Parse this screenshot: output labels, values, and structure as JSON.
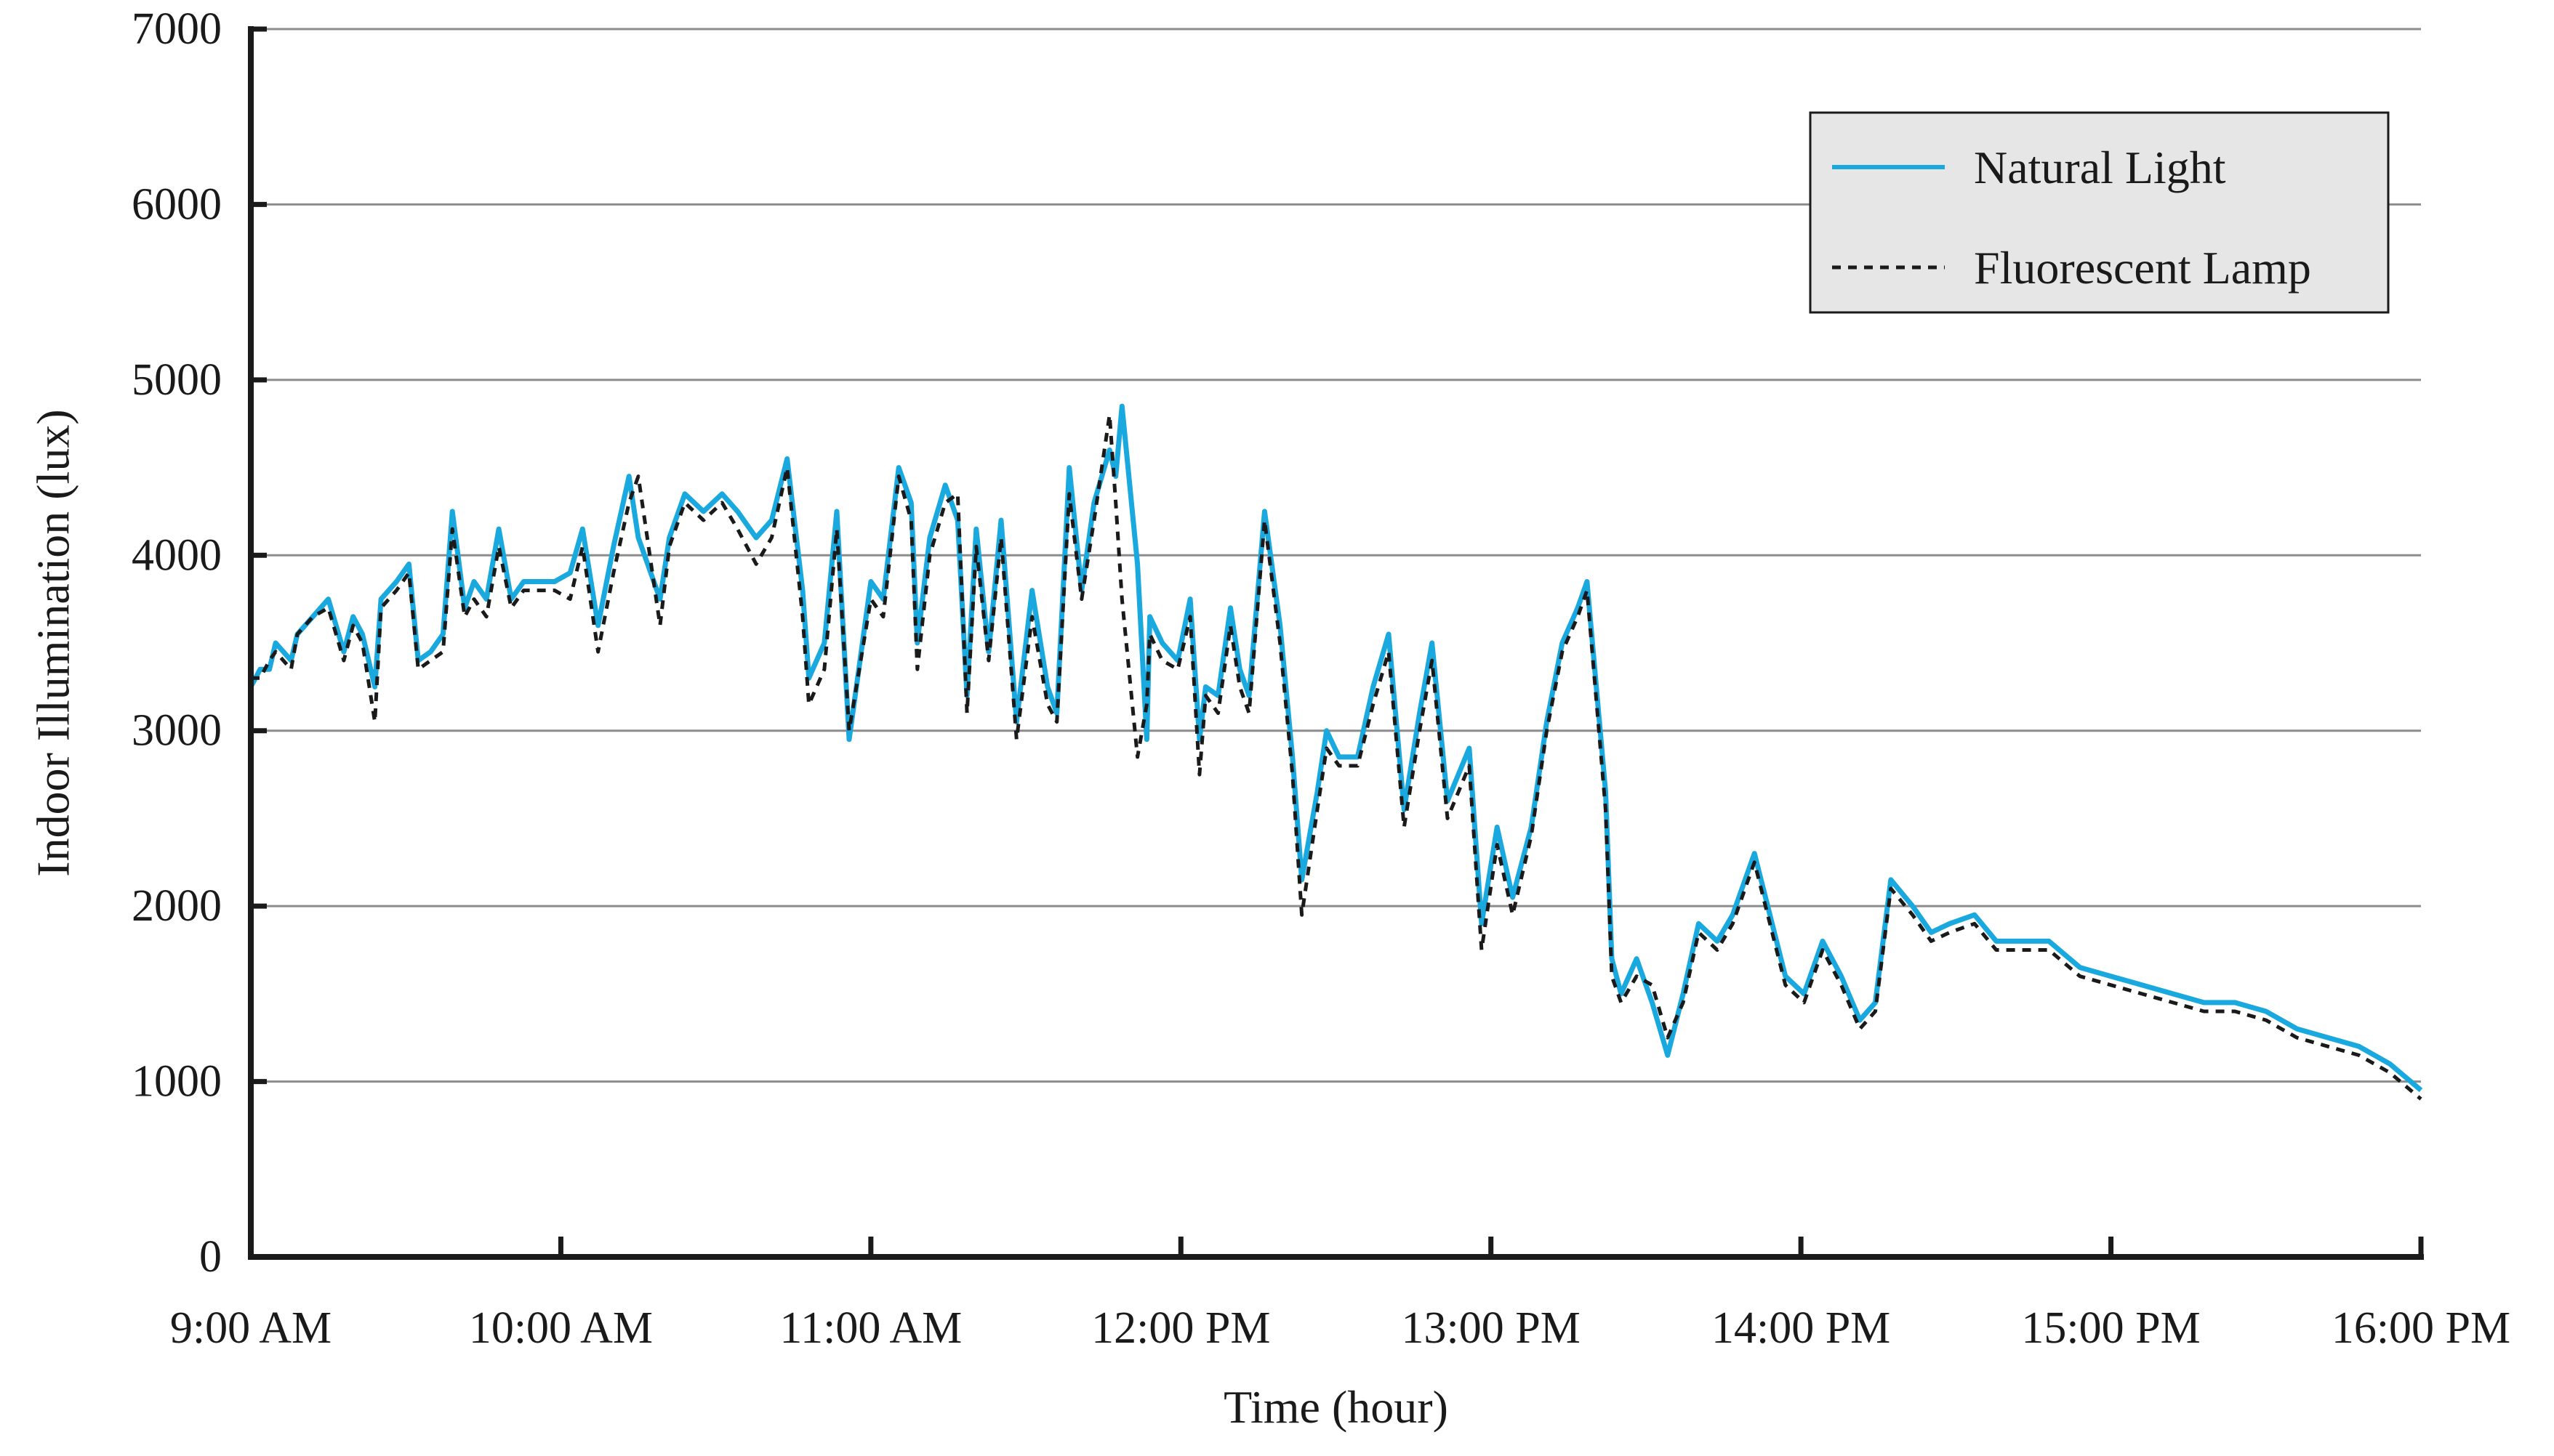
{
  "chart_data": {
    "type": "line",
    "title": "",
    "xlabel": "Time (hour)",
    "ylabel": "Indoor Illumination (lux)",
    "xlim": [
      9,
      16
    ],
    "ylim": [
      0,
      7000
    ],
    "x_ticks": [
      {
        "value": 9,
        "label": "9:00 AM"
      },
      {
        "value": 10,
        "label": "10:00 AM"
      },
      {
        "value": 11,
        "label": "11:00 AM"
      },
      {
        "value": 12,
        "label": "12:00 PM"
      },
      {
        "value": 13,
        "label": "13:00 PM"
      },
      {
        "value": 14,
        "label": "14:00 PM"
      },
      {
        "value": 15,
        "label": "15:00 PM"
      },
      {
        "value": 16,
        "label": "16:00 PM"
      }
    ],
    "y_ticks": [
      {
        "value": 0,
        "label": "0"
      },
      {
        "value": 1000,
        "label": "1000"
      },
      {
        "value": 2000,
        "label": "2000"
      },
      {
        "value": 3000,
        "label": "3000"
      },
      {
        "value": 4000,
        "label": "4000"
      },
      {
        "value": 5000,
        "label": "5000"
      },
      {
        "value": 6000,
        "label": "6000"
      },
      {
        "value": 7000,
        "label": "7000"
      }
    ],
    "grid": true,
    "legend": "top-right",
    "series": [
      {
        "name": "Natural Light",
        "color": "#1aa9de",
        "dash": "solid",
        "points": [
          [
            9.0,
            3250
          ],
          [
            9.03,
            3350
          ],
          [
            9.06,
            3350
          ],
          [
            9.08,
            3500
          ],
          [
            9.13,
            3400
          ],
          [
            9.15,
            3550
          ],
          [
            9.2,
            3650
          ],
          [
            9.25,
            3750
          ],
          [
            9.3,
            3450
          ],
          [
            9.33,
            3650
          ],
          [
            9.36,
            3550
          ],
          [
            9.4,
            3250
          ],
          [
            9.42,
            3750
          ],
          [
            9.47,
            3850
          ],
          [
            9.51,
            3950
          ],
          [
            9.54,
            3400
          ],
          [
            9.58,
            3450
          ],
          [
            9.62,
            3550
          ],
          [
            9.65,
            4250
          ],
          [
            9.69,
            3700
          ],
          [
            9.72,
            3850
          ],
          [
            9.76,
            3750
          ],
          [
            9.8,
            4150
          ],
          [
            9.84,
            3750
          ],
          [
            9.88,
            3850
          ],
          [
            9.93,
            3850
          ],
          [
            9.98,
            3850
          ],
          [
            10.03,
            3900
          ],
          [
            10.07,
            4150
          ],
          [
            10.12,
            3600
          ],
          [
            10.17,
            4050
          ],
          [
            10.22,
            4450
          ],
          [
            10.25,
            4100
          ],
          [
            10.32,
            3750
          ],
          [
            10.35,
            4100
          ],
          [
            10.4,
            4350
          ],
          [
            10.46,
            4250
          ],
          [
            10.52,
            4350
          ],
          [
            10.57,
            4250
          ],
          [
            10.63,
            4100
          ],
          [
            10.68,
            4200
          ],
          [
            10.73,
            4550
          ],
          [
            10.78,
            3800
          ],
          [
            10.8,
            3300
          ],
          [
            10.85,
            3500
          ],
          [
            10.89,
            4250
          ],
          [
            10.93,
            2950
          ],
          [
            11.0,
            3850
          ],
          [
            11.04,
            3750
          ],
          [
            11.09,
            4500
          ],
          [
            11.13,
            4300
          ],
          [
            11.15,
            3500
          ],
          [
            11.19,
            4100
          ],
          [
            11.24,
            4400
          ],
          [
            11.28,
            4200
          ],
          [
            11.31,
            3200
          ],
          [
            11.34,
            4150
          ],
          [
            11.38,
            3450
          ],
          [
            11.42,
            4200
          ],
          [
            11.47,
            3050
          ],
          [
            11.52,
            3800
          ],
          [
            11.57,
            3250
          ],
          [
            11.6,
            3100
          ],
          [
            11.64,
            4500
          ],
          [
            11.68,
            3800
          ],
          [
            11.72,
            4300
          ],
          [
            11.77,
            4600
          ],
          [
            11.79,
            4450
          ],
          [
            11.81,
            4850
          ],
          [
            11.86,
            3950
          ],
          [
            11.89,
            2950
          ],
          [
            11.9,
            3650
          ],
          [
            11.94,
            3500
          ],
          [
            11.99,
            3400
          ],
          [
            12.03,
            3750
          ],
          [
            12.06,
            2950
          ],
          [
            12.08,
            3250
          ],
          [
            12.12,
            3200
          ],
          [
            12.16,
            3700
          ],
          [
            12.19,
            3350
          ],
          [
            12.22,
            3200
          ],
          [
            12.27,
            4250
          ],
          [
            12.32,
            3600
          ],
          [
            12.36,
            2850
          ],
          [
            12.39,
            2150
          ],
          [
            12.44,
            2650
          ],
          [
            12.47,
            3000
          ],
          [
            12.51,
            2850
          ],
          [
            12.57,
            2850
          ],
          [
            12.62,
            3250
          ],
          [
            12.67,
            3550
          ],
          [
            12.72,
            2550
          ],
          [
            12.77,
            3100
          ],
          [
            12.81,
            3500
          ],
          [
            12.86,
            2600
          ],
          [
            12.93,
            2900
          ],
          [
            12.97,
            1900
          ],
          [
            13.02,
            2450
          ],
          [
            13.07,
            2050
          ],
          [
            13.13,
            2450
          ],
          [
            13.18,
            3050
          ],
          [
            13.23,
            3500
          ],
          [
            13.28,
            3700
          ],
          [
            13.31,
            3850
          ],
          [
            13.37,
            2650
          ],
          [
            13.39,
            1700
          ],
          [
            13.42,
            1500
          ],
          [
            13.47,
            1700
          ],
          [
            13.52,
            1450
          ],
          [
            13.57,
            1150
          ],
          [
            13.62,
            1500
          ],
          [
            13.67,
            1900
          ],
          [
            13.73,
            1800
          ],
          [
            13.78,
            1950
          ],
          [
            13.85,
            2300
          ],
          [
            13.9,
            1950
          ],
          [
            13.95,
            1600
          ],
          [
            14.01,
            1500
          ],
          [
            14.07,
            1800
          ],
          [
            14.13,
            1600
          ],
          [
            14.19,
            1350
          ],
          [
            14.24,
            1450
          ],
          [
            14.29,
            2150
          ],
          [
            14.36,
            2000
          ],
          [
            14.42,
            1850
          ],
          [
            14.48,
            1900
          ],
          [
            14.56,
            1950
          ],
          [
            14.63,
            1800
          ],
          [
            14.72,
            1800
          ],
          [
            14.8,
            1800
          ],
          [
            14.9,
            1650
          ],
          [
            15.0,
            1600
          ],
          [
            15.1,
            1550
          ],
          [
            15.2,
            1500
          ],
          [
            15.3,
            1450
          ],
          [
            15.4,
            1450
          ],
          [
            15.5,
            1400
          ],
          [
            15.6,
            1300
          ],
          [
            15.7,
            1250
          ],
          [
            15.8,
            1200
          ],
          [
            15.9,
            1100
          ],
          [
            16.0,
            950
          ]
        ]
      },
      {
        "name": "Fluorescent Lamp",
        "color": "#1a1a1a",
        "dash": "dashed",
        "points": [
          [
            9.0,
            3300
          ],
          [
            9.03,
            3300
          ],
          [
            9.06,
            3400
          ],
          [
            9.08,
            3450
          ],
          [
            9.13,
            3350
          ],
          [
            9.15,
            3550
          ],
          [
            9.2,
            3650
          ],
          [
            9.25,
            3700
          ],
          [
            9.3,
            3400
          ],
          [
            9.33,
            3600
          ],
          [
            9.36,
            3500
          ],
          [
            9.4,
            3050
          ],
          [
            9.42,
            3700
          ],
          [
            9.47,
            3800
          ],
          [
            9.51,
            3900
          ],
          [
            9.54,
            3350
          ],
          [
            9.58,
            3400
          ],
          [
            9.62,
            3450
          ],
          [
            9.65,
            4150
          ],
          [
            9.69,
            3650
          ],
          [
            9.72,
            3750
          ],
          [
            9.76,
            3650
          ],
          [
            9.8,
            4050
          ],
          [
            9.84,
            3700
          ],
          [
            9.88,
            3800
          ],
          [
            9.93,
            3800
          ],
          [
            9.98,
            3800
          ],
          [
            10.03,
            3750
          ],
          [
            10.07,
            4050
          ],
          [
            10.12,
            3450
          ],
          [
            10.17,
            3900
          ],
          [
            10.22,
            4300
          ],
          [
            10.25,
            4450
          ],
          [
            10.32,
            3600
          ],
          [
            10.35,
            4050
          ],
          [
            10.4,
            4300
          ],
          [
            10.46,
            4200
          ],
          [
            10.52,
            4300
          ],
          [
            10.57,
            4150
          ],
          [
            10.63,
            3950
          ],
          [
            10.68,
            4100
          ],
          [
            10.73,
            4500
          ],
          [
            10.78,
            3650
          ],
          [
            10.8,
            3150
          ],
          [
            10.85,
            3350
          ],
          [
            10.89,
            4150
          ],
          [
            10.93,
            3000
          ],
          [
            11.0,
            3750
          ],
          [
            11.04,
            3650
          ],
          [
            11.09,
            4450
          ],
          [
            11.13,
            4200
          ],
          [
            11.15,
            3350
          ],
          [
            11.19,
            4000
          ],
          [
            11.24,
            4300
          ],
          [
            11.28,
            4350
          ],
          [
            11.31,
            3100
          ],
          [
            11.34,
            4050
          ],
          [
            11.38,
            3400
          ],
          [
            11.42,
            4100
          ],
          [
            11.47,
            2950
          ],
          [
            11.52,
            3650
          ],
          [
            11.57,
            3150
          ],
          [
            11.6,
            3050
          ],
          [
            11.64,
            4350
          ],
          [
            11.68,
            3750
          ],
          [
            11.72,
            4200
          ],
          [
            11.77,
            4800
          ],
          [
            11.79,
            4300
          ],
          [
            11.81,
            3750
          ],
          [
            11.86,
            2850
          ],
          [
            11.89,
            3150
          ],
          [
            11.9,
            3550
          ],
          [
            11.94,
            3400
          ],
          [
            11.99,
            3350
          ],
          [
            12.03,
            3650
          ],
          [
            12.06,
            2750
          ],
          [
            12.08,
            3200
          ],
          [
            12.12,
            3100
          ],
          [
            12.16,
            3600
          ],
          [
            12.19,
            3250
          ],
          [
            12.22,
            3100
          ],
          [
            12.27,
            4200
          ],
          [
            12.32,
            3500
          ],
          [
            12.36,
            2750
          ],
          [
            12.39,
            1950
          ],
          [
            12.44,
            2550
          ],
          [
            12.47,
            2900
          ],
          [
            12.51,
            2800
          ],
          [
            12.57,
            2800
          ],
          [
            12.62,
            3150
          ],
          [
            12.67,
            3450
          ],
          [
            12.72,
            2450
          ],
          [
            12.77,
            3000
          ],
          [
            12.81,
            3400
          ],
          [
            12.86,
            2500
          ],
          [
            12.93,
            2800
          ],
          [
            12.97,
            1750
          ],
          [
            13.02,
            2350
          ],
          [
            13.07,
            1950
          ],
          [
            13.13,
            2400
          ],
          [
            13.18,
            3000
          ],
          [
            13.23,
            3450
          ],
          [
            13.28,
            3650
          ],
          [
            13.31,
            3800
          ],
          [
            13.37,
            2550
          ],
          [
            13.39,
            1600
          ],
          [
            13.42,
            1450
          ],
          [
            13.47,
            1600
          ],
          [
            13.52,
            1550
          ],
          [
            13.57,
            1250
          ],
          [
            13.62,
            1450
          ],
          [
            13.67,
            1850
          ],
          [
            13.73,
            1750
          ],
          [
            13.78,
            1900
          ],
          [
            13.85,
            2250
          ],
          [
            13.9,
            1900
          ],
          [
            13.95,
            1550
          ],
          [
            14.01,
            1450
          ],
          [
            14.07,
            1750
          ],
          [
            14.13,
            1550
          ],
          [
            14.19,
            1300
          ],
          [
            14.24,
            1400
          ],
          [
            14.29,
            2100
          ],
          [
            14.36,
            1950
          ],
          [
            14.42,
            1800
          ],
          [
            14.48,
            1850
          ],
          [
            14.56,
            1900
          ],
          [
            14.63,
            1750
          ],
          [
            14.72,
            1750
          ],
          [
            14.8,
            1750
          ],
          [
            14.9,
            1600
          ],
          [
            15.0,
            1550
          ],
          [
            15.1,
            1500
          ],
          [
            15.2,
            1450
          ],
          [
            15.3,
            1400
          ],
          [
            15.4,
            1400
          ],
          [
            15.5,
            1350
          ],
          [
            15.6,
            1250
          ],
          [
            15.7,
            1200
          ],
          [
            15.8,
            1150
          ],
          [
            15.9,
            1050
          ],
          [
            16.0,
            900
          ]
        ]
      }
    ]
  }
}
